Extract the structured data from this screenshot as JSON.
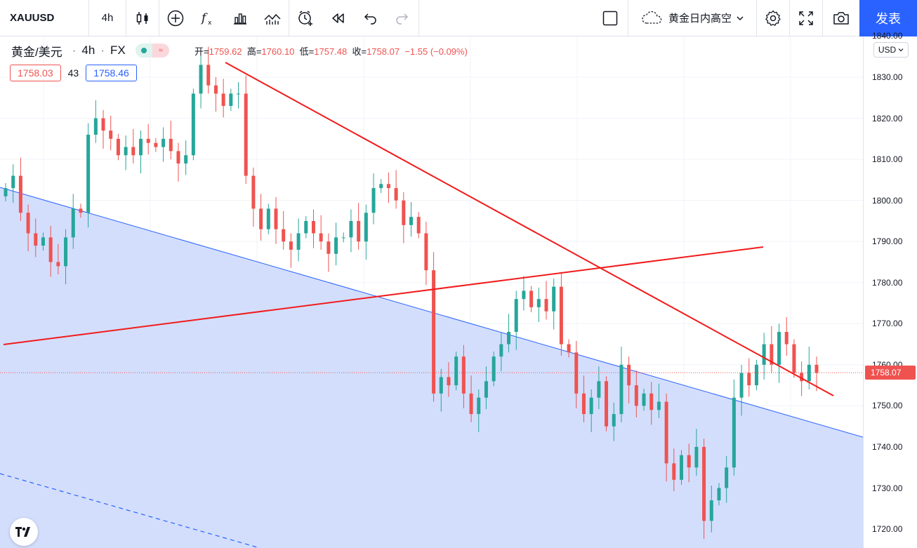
{
  "toolbar": {
    "symbol": "XAUUSD",
    "interval": "4h",
    "layout_name": "黄金日内高空",
    "publish_label": "发表",
    "icons": [
      "candles-icon",
      "indicator-add-icon",
      "fx-icon",
      "templates-icon",
      "alert-icon",
      "replay-icon",
      "undo-icon",
      "redo-icon",
      "layout-box-icon",
      "cloud-icon",
      "chevron-down-icon",
      "gear-icon",
      "fullscreen-icon",
      "camera-icon"
    ]
  },
  "legend": {
    "name": "黄金/美元",
    "interval": "4h",
    "exchange": "FX",
    "open_label": "开=",
    "open": "1759.62",
    "high_label": "高=",
    "high": "1760.10",
    "low_label": "低=",
    "low": "1757.48",
    "close_label": "收=",
    "close": "1758.07",
    "change": "−1.55 (−0.09%)",
    "bid": "1758.03",
    "spread": "43",
    "ask": "1758.46"
  },
  "price_axis": {
    "currency": "USD",
    "ticks": [
      "1840.00",
      "1830.00",
      "1820.00",
      "1810.00",
      "1800.00",
      "1790.00",
      "1780.00",
      "1770.00",
      "1760.00",
      "1750.00",
      "1740.00",
      "1730.00",
      "1720.00"
    ],
    "current_price": "1758.07"
  },
  "colors": {
    "up": "#26a69a",
    "down": "#ef5350",
    "trend_red": "#f21b1b",
    "channel_blue": "#2962ff",
    "fill_blue": "#d3defc",
    "accent": "#2962ff"
  },
  "chart_data": {
    "type": "candlestick",
    "symbol": "XAUUSD",
    "ylim": [
      1718,
      1842
    ],
    "y_ticks": [
      1720,
      1730,
      1740,
      1750,
      1760,
      1770,
      1780,
      1790,
      1800,
      1810,
      1820,
      1830,
      1840
    ],
    "current_price": 1758.07,
    "closes": [
      1803,
      1806,
      1797,
      1792,
      1789,
      1791,
      1785,
      1784,
      1791,
      1798,
      1797,
      1816,
      1820,
      1817,
      1815,
      1811,
      1813,
      1811,
      1815,
      1814,
      1813,
      1815,
      1812,
      1809,
      1811,
      1826,
      1833,
      1828,
      1826,
      1823,
      1826,
      1826,
      1806,
      1798,
      1793,
      1798,
      1793,
      1790,
      1788,
      1792,
      1795,
      1792,
      1790,
      1787,
      1791,
      1791,
      1795,
      1790,
      1797,
      1803,
      1804,
      1803,
      1800,
      1794,
      1796,
      1792,
      1783,
      1753,
      1757,
      1755,
      1762,
      1753,
      1748,
      1752,
      1756,
      1762,
      1765,
      1768,
      1776,
      1778,
      1774,
      1776,
      1773,
      1779,
      1765,
      1763,
      1753,
      1748,
      1752,
      1756,
      1745,
      1748,
      1760,
      1755,
      1750,
      1753,
      1749,
      1751,
      1736,
      1732,
      1738,
      1735,
      1740,
      1722,
      1727,
      1730,
      1735,
      1752,
      1758,
      1755,
      1760,
      1765,
      1760,
      1768,
      1765,
      1758,
      1756,
      1760,
      1758
    ]
  }
}
